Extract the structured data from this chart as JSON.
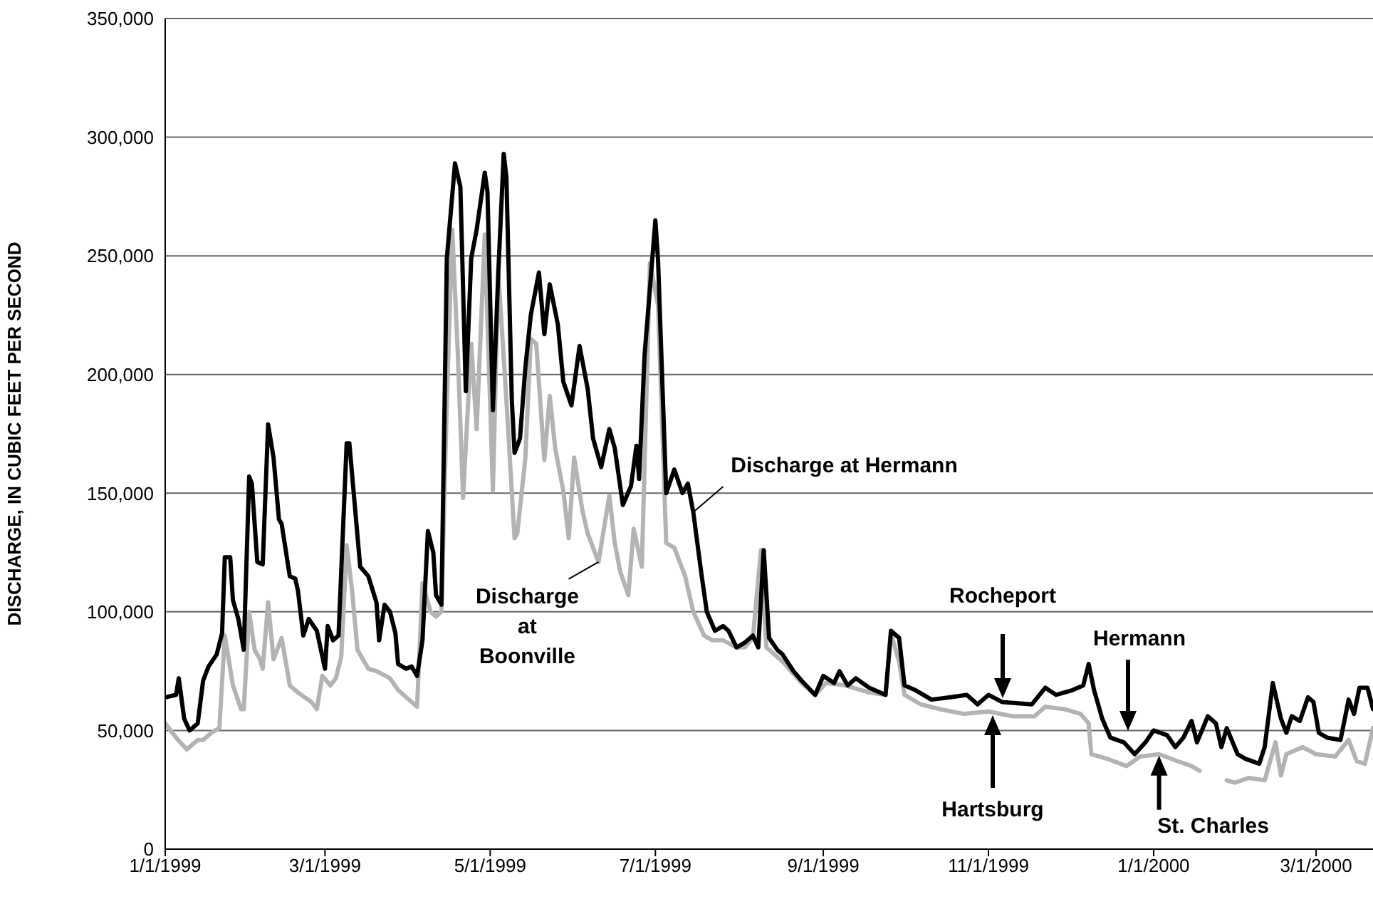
{
  "chart_data": {
    "type": "line",
    "ylabel": "DISCHARGE, IN CUBIC FEET PER SECOND",
    "xlim": [
      "1999-01-01",
      "2000-03-22"
    ],
    "ylim": [
      0,
      350000
    ],
    "xticks": [
      {
        "value": "1999-01-01",
        "label": "1/1/1999"
      },
      {
        "value": "1999-03-01",
        "label": "3/1/1999"
      },
      {
        "value": "1999-05-01",
        "label": "5/1/1999"
      },
      {
        "value": "1999-07-01",
        "label": "7/1/1999"
      },
      {
        "value": "1999-09-01",
        "label": "9/1/1999"
      },
      {
        "value": "1999-11-01",
        "label": "11/1/1999"
      },
      {
        "value": "2000-01-01",
        "label": "1/1/2000"
      },
      {
        "value": "2000-03-01",
        "label": "3/1/2000"
      }
    ],
    "yticks": [
      0,
      {
        "value": 50000,
        "label": "50,000"
      },
      {
        "value": 100000,
        "label": "100,000"
      },
      {
        "value": 150000,
        "label": "150,000"
      },
      {
        "value": 200000,
        "label": "200,000"
      },
      {
        "value": 250000,
        "label": "250,000"
      },
      {
        "value": 300000,
        "label": "300,000"
      },
      {
        "value": 350000,
        "label": "350,000"
      }
    ],
    "grid": "y",
    "marker": "none",
    "line_style": "solid",
    "series": [
      {
        "color": "#b3b3b3",
        "x": [
          "1999-01-01",
          "1999-01-05",
          "1999-01-09",
          "1999-01-13",
          "1999-01-15",
          "1999-01-18",
          "1999-01-21",
          "1999-01-23",
          "1999-01-26",
          "1999-01-29",
          "1999-01-30",
          "1999-02-01",
          "1999-02-03",
          "1999-02-05",
          "1999-02-06",
          "1999-02-08",
          "1999-02-10",
          "1999-02-13",
          "1999-02-16",
          "1999-02-19",
          "1999-02-24",
          "1999-02-26",
          "1999-02-28",
          "1999-03-03",
          "1999-03-05",
          "1999-03-07",
          "1999-03-09",
          "1999-03-11",
          "1999-03-13",
          "1999-03-17",
          "1999-03-20",
          "1999-03-25",
          "1999-03-28",
          "1999-04-02",
          "1999-04-04",
          "1999-04-06",
          "1999-04-09",
          "1999-04-11",
          "1999-04-13",
          "1999-04-15",
          "1999-04-17",
          "1999-04-19",
          "1999-04-21",
          "1999-04-24",
          "1999-04-26",
          "1999-04-29",
          "1999-05-02",
          "1999-05-04",
          "1999-05-07",
          "1999-05-10",
          "1999-05-11",
          "1999-05-14",
          "1999-05-16",
          "1999-05-18",
          "1999-05-21",
          "1999-05-23",
          "1999-05-25",
          "1999-05-28",
          "1999-05-30",
          "1999-06-01",
          "1999-06-04",
          "1999-06-06",
          "1999-06-10",
          "1999-06-14",
          "1999-06-16",
          "1999-06-18",
          "1999-06-21",
          "1999-06-23",
          "1999-06-26",
          "1999-06-29",
          "1999-07-02",
          "1999-07-05",
          "1999-07-08",
          "1999-07-12",
          "1999-07-15",
          "1999-07-19",
          "1999-07-22",
          "1999-07-26",
          "1999-07-31",
          "1999-08-03",
          "1999-08-06",
          "1999-08-09",
          "1999-08-11",
          "1999-08-17",
          "1999-08-24",
          "1999-08-29",
          "1999-09-02",
          "1999-09-09",
          "1999-09-18",
          "1999-09-24",
          "1999-09-26",
          "1999-09-29",
          "1999-10-01",
          "1999-10-07",
          "1999-10-14",
          "1999-10-23",
          "1999-11-01",
          "1999-11-10",
          "1999-11-18",
          "1999-11-22",
          "1999-11-29",
          "1999-12-05",
          "1999-12-08",
          "1999-12-09",
          "1999-12-15",
          "1999-12-22",
          "1999-12-27",
          "2000-01-03",
          "2000-01-10",
          "2000-01-15",
          "2000-01-18",
          "2000-01-24",
          "2000-01-28",
          "2000-01-31",
          "2000-02-05",
          "2000-02-11",
          "2000-02-15",
          "2000-02-17",
          "2000-02-19",
          "2000-02-25",
          "2000-03-01",
          "2000-03-08",
          "2000-03-13",
          "2000-03-16",
          "2000-03-19",
          "2000-03-22"
        ],
        "values": [
          53000,
          47000,
          42000,
          46000,
          46000,
          49000,
          51000,
          90000,
          69000,
          59000,
          59000,
          100000,
          84000,
          80000,
          76000,
          104000,
          80000,
          89000,
          69000,
          66000,
          62000,
          59000,
          73000,
          69000,
          72000,
          81000,
          128000,
          109000,
          84000,
          76000,
          75000,
          72000,
          67000,
          62000,
          60000,
          112000,
          100000,
          98000,
          100000,
          188000,
          261000,
          210000,
          148000,
          213000,
          177000,
          259000,
          151000,
          243000,
          189000,
          131000,
          133000,
          165000,
          215000,
          213000,
          164000,
          191000,
          169000,
          151000,
          131000,
          165000,
          143000,
          133000,
          121000,
          149000,
          129000,
          117000,
          107000,
          135000,
          119000,
          247000,
          229000,
          129000,
          127000,
          115000,
          100000,
          90000,
          88000,
          88000,
          85000,
          85000,
          89000,
          126000,
          85000,
          79000,
          70000,
          65000,
          70000,
          69000,
          66000,
          65000,
          91000,
          79000,
          65000,
          61000,
          59000,
          57000,
          58000,
          56000,
          56000,
          60000,
          59000,
          57000,
          53000,
          40000,
          38000,
          35000,
          39000,
          40000,
          37000,
          35000,
          33000,
          null,
          29000,
          28000,
          30000,
          29000,
          45000,
          31000,
          40000,
          43000,
          40000,
          39000,
          46000,
          37000,
          36000,
          51000
        ]
      },
      {
        "color": "#000000",
        "x": [
          "1999-01-01",
          "1999-01-05",
          "1999-01-06",
          "1999-01-08",
          "1999-01-10",
          "1999-01-13",
          "1999-01-15",
          "1999-01-17",
          "1999-01-20",
          "1999-01-22",
          "1999-01-23",
          "1999-01-25",
          "1999-01-26",
          "1999-01-28",
          "1999-01-30",
          "1999-02-01",
          "1999-02-02",
          "1999-02-04",
          "1999-02-06",
          "1999-02-08",
          "1999-02-10",
          "1999-02-12",
          "1999-02-13",
          "1999-02-16",
          "1999-02-18",
          "1999-02-19",
          "1999-02-21",
          "1999-02-23",
          "1999-02-26",
          "1999-03-01",
          "1999-03-02",
          "1999-03-04",
          "1999-03-06",
          "1999-03-09",
          "1999-03-10",
          "1999-03-12",
          "1999-03-14",
          "1999-03-17",
          "1999-03-20",
          "1999-03-21",
          "1999-03-23",
          "1999-03-25",
          "1999-03-27",
          "1999-03-28",
          "1999-03-31",
          "1999-04-02",
          "1999-04-04",
          "1999-04-06",
          "1999-04-08",
          "1999-04-10",
          "1999-04-11",
          "1999-04-13",
          "1999-04-15",
          "1999-04-18",
          "1999-04-20",
          "1999-04-22",
          "1999-04-24",
          "1999-04-26",
          "1999-04-29",
          "1999-04-30",
          "1999-05-02",
          "1999-05-04",
          "1999-05-06",
          "1999-05-07",
          "1999-05-09",
          "1999-05-10",
          "1999-05-12",
          "1999-05-14",
          "1999-05-16",
          "1999-05-19",
          "1999-05-21",
          "1999-05-23",
          "1999-05-26",
          "1999-05-28",
          "1999-05-31",
          "1999-06-03",
          "1999-06-06",
          "1999-06-08",
          "1999-06-11",
          "1999-06-14",
          "1999-06-16",
          "1999-06-19",
          "1999-06-22",
          "1999-06-24",
          "1999-06-25",
          "1999-06-27",
          "1999-07-01",
          "1999-07-02",
          "1999-07-05",
          "1999-07-08",
          "1999-07-11",
          "1999-07-13",
          "1999-07-15",
          "1999-07-18",
          "1999-07-20",
          "1999-07-23",
          "1999-07-26",
          "1999-07-28",
          "1999-07-31",
          "1999-08-03",
          "1999-08-06",
          "1999-08-08",
          "1999-08-10",
          "1999-08-12",
          "1999-08-15",
          "1999-08-17",
          "1999-08-21",
          "1999-08-24",
          "1999-08-29",
          "1999-09-01",
          "1999-09-05",
          "1999-09-07",
          "1999-09-10",
          "1999-09-13",
          "1999-09-18",
          "1999-09-24",
          "1999-09-26",
          "1999-09-29",
          "1999-10-01",
          "1999-10-05",
          "1999-10-11",
          "1999-10-18",
          "1999-10-24",
          "1999-10-28",
          "1999-11-01",
          "1999-11-06",
          "1999-11-17",
          "1999-11-22",
          "1999-11-26",
          "1999-12-02",
          "1999-12-06",
          "1999-12-08",
          "1999-12-10",
          "1999-12-13",
          "1999-12-16",
          "1999-12-21",
          "1999-12-25",
          "1999-12-29",
          "2000-01-01",
          "2000-01-06",
          "2000-01-09",
          "2000-01-12",
          "2000-01-15",
          "2000-01-17",
          "2000-01-21",
          "2000-01-24",
          "2000-01-26",
          "2000-01-28",
          "2000-02-01",
          "2000-02-04",
          "2000-02-09",
          "2000-02-11",
          "2000-02-14",
          "2000-02-17",
          "2000-02-19",
          "2000-02-21",
          "2000-02-24",
          "2000-02-27",
          "2000-02-29",
          "2000-03-02",
          "2000-03-05",
          "2000-03-10",
          "2000-03-13",
          "2000-03-15",
          "2000-03-17",
          "2000-03-20",
          "2000-03-22"
        ],
        "values": [
          64000,
          65000,
          72000,
          55000,
          50000,
          53000,
          71000,
          77000,
          82000,
          91000,
          123000,
          123000,
          105000,
          97000,
          84000,
          157000,
          154000,
          121000,
          120000,
          179000,
          165000,
          139000,
          137000,
          115000,
          114000,
          109000,
          90000,
          97000,
          92000,
          76000,
          94000,
          88000,
          90000,
          171000,
          171000,
          145000,
          119000,
          115000,
          104000,
          88000,
          103000,
          100000,
          91000,
          78000,
          76000,
          77000,
          73000,
          88000,
          134000,
          125000,
          107000,
          103000,
          249000,
          289000,
          279000,
          193000,
          249000,
          261000,
          285000,
          277000,
          185000,
          243000,
          293000,
          283000,
          189000,
          167000,
          173000,
          203000,
          225000,
          243000,
          217000,
          238000,
          221000,
          197000,
          187000,
          212000,
          194000,
          173000,
          161000,
          177000,
          169000,
          145000,
          153000,
          170000,
          156000,
          208000,
          265000,
          248000,
          150000,
          160000,
          150000,
          154000,
          142000,
          116000,
          100000,
          92000,
          94000,
          92000,
          85000,
          87000,
          90000,
          85000,
          126000,
          89000,
          84000,
          82000,
          75000,
          71000,
          65000,
          73000,
          70000,
          75000,
          69000,
          72000,
          68000,
          65000,
          92000,
          89000,
          69000,
          67000,
          63000,
          64000,
          65000,
          61000,
          65000,
          62000,
          61000,
          68000,
          65000,
          67000,
          69000,
          78000,
          67000,
          55000,
          47000,
          45000,
          40000,
          45000,
          50000,
          48000,
          43000,
          47000,
          54000,
          45000,
          56000,
          53000,
          43000,
          51000,
          40000,
          38000,
          36000,
          43000,
          70000,
          55000,
          49000,
          56000,
          54000,
          64000,
          62000,
          49000,
          47000,
          46000,
          63000,
          57000,
          68000,
          68000,
          59000
        ]
      }
    ],
    "annotations": [
      {
        "text": "Discharge at Hermann",
        "x": "1999-07-15",
        "y": 142000
      },
      {
        "text": "Discharge\nat\nBoonville",
        "x": "1999-06-10",
        "y": 121000
      },
      "Rocheport",
      "Hermann",
      "Hartsburg",
      {
        "text": "St. Charles",
        "x": "2000-01-03",
        "y": 40000
      }
    ]
  }
}
